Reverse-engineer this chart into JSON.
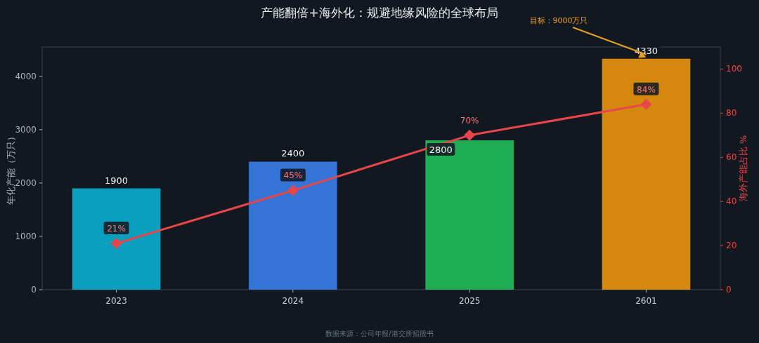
{
  "chart_data": {
    "type": "bar",
    "title": "产能翻倍+海外化：规避地缘风险的全球布局",
    "ylabel": "年化产能（万只）",
    "y2label": "海外产能占比 %",
    "categories": [
      "2023",
      "2024",
      "2025",
      "2601"
    ],
    "series": [
      {
        "colors": [
          "#0a9fbf",
          "#3474d6",
          "#20ad55",
          "#d4890e"
        ],
        "values": [
          1900,
          2400,
          2800,
          4330
        ],
        "value_labels": [
          "1900",
          "2400",
          "2800",
          "4330"
        ]
      },
      {
        "type": "line",
        "axis": "y2",
        "color": "#e8464b",
        "values": [
          21,
          45,
          70,
          84
        ],
        "value_labels": [
          "21%",
          "45%",
          "70%",
          "84%"
        ]
      }
    ],
    "ylim": [
      0,
      4550
    ],
    "yticks": [
      0,
      1000,
      2000,
      3000,
      4000
    ],
    "y2lim": [
      0,
      110
    ],
    "y2ticks": [
      0,
      20,
      40,
      60,
      80,
      100
    ],
    "marker": "diamond",
    "grid": false,
    "annotations": [
      {
        "text": "目标：9000万只",
        "x": "2601",
        "y": 4330
      },
      "数据来源：公司年报/港交所招股书"
    ]
  }
}
